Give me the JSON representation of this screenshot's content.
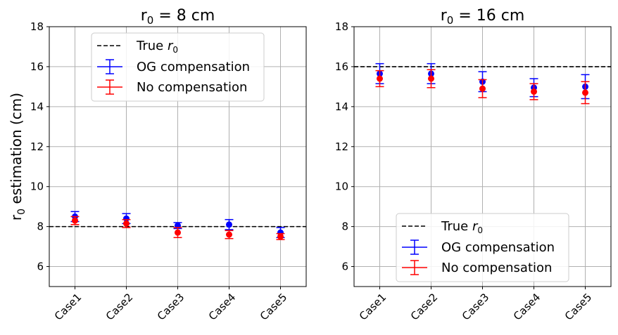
{
  "figure": {
    "ylabel_main": "r",
    "ylabel_sub": "0",
    "ylabel_rest": " estimation (cm)"
  },
  "chart_data": [
    {
      "type": "scatter",
      "title_main": "r",
      "title_sub": "0",
      "title_rest": " = 8 cm",
      "categories": [
        "Case1",
        "Case2",
        "Case3",
        "Case4",
        "Case5"
      ],
      "ylim": [
        5,
        18
      ],
      "yticks": [
        6,
        8,
        10,
        12,
        14,
        16,
        18
      ],
      "grid": true,
      "reference_line": {
        "label_main": "True ",
        "label_var": "r",
        "label_sub": "0",
        "value": 8,
        "color": "#000000"
      },
      "series": [
        {
          "name": "OG compensation",
          "color": "#0000ff",
          "values": [
            8.5,
            8.4,
            8.05,
            8.1,
            7.7
          ],
          "errors": [
            0.25,
            0.25,
            0.15,
            0.25,
            0.25
          ]
        },
        {
          "name": "No compensation",
          "color": "#ff0000",
          "values": [
            8.3,
            8.15,
            7.7,
            7.6,
            7.5
          ],
          "errors": [
            0.2,
            0.2,
            0.25,
            0.2,
            0.15
          ]
        }
      ],
      "legend_position": "upper center"
    },
    {
      "type": "scatter",
      "title_main": "r",
      "title_sub": "0",
      "title_rest": " = 16 cm",
      "categories": [
        "Case1",
        "Case2",
        "Case3",
        "Case4",
        "Case5"
      ],
      "ylim": [
        5,
        18
      ],
      "yticks": [
        6,
        8,
        10,
        12,
        14,
        16,
        18
      ],
      "grid": true,
      "reference_line": {
        "label_main": "True ",
        "label_var": "r",
        "label_sub": "0",
        "value": 16,
        "color": "#000000"
      },
      "series": [
        {
          "name": "OG compensation",
          "color": "#0000ff",
          "values": [
            15.65,
            15.65,
            15.25,
            14.95,
            15.0
          ],
          "errors": [
            0.5,
            0.5,
            0.5,
            0.45,
            0.6
          ]
        },
        {
          "name": "No compensation",
          "color": "#ff0000",
          "values": [
            15.4,
            15.4,
            14.9,
            14.75,
            14.7
          ],
          "errors": [
            0.4,
            0.45,
            0.45,
            0.4,
            0.55
          ]
        }
      ],
      "legend_position": "lower center"
    }
  ]
}
